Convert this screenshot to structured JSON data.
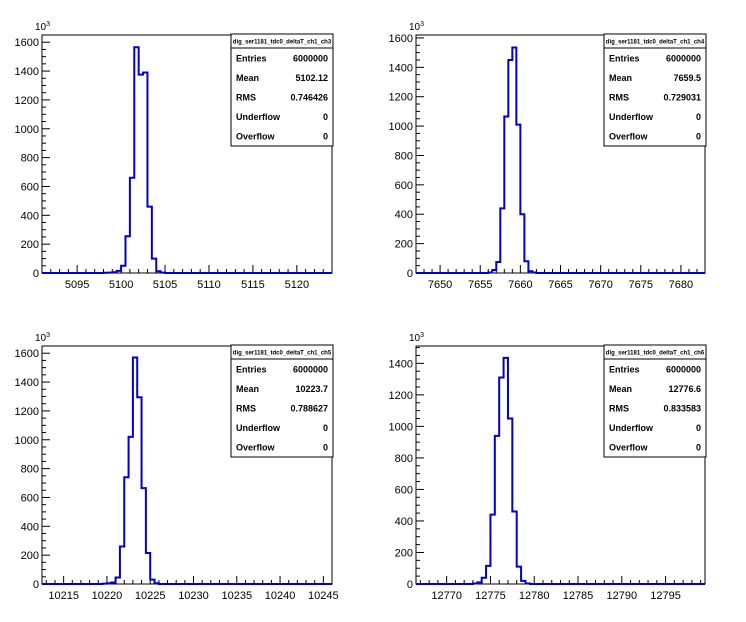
{
  "chart_data": [
    {
      "type": "histogram",
      "title": "dig_ser1181_tdc0_deltaT_ch1_ch3",
      "xlim": [
        5091,
        5124
      ],
      "ylim": [
        0,
        1650
      ],
      "xticks": [
        5095,
        5100,
        5105,
        5110,
        5115,
        5120
      ],
      "yticks": [
        0,
        200,
        400,
        600,
        800,
        1000,
        1200,
        1400,
        1600
      ],
      "yticks_major": [
        0,
        200,
        400,
        600,
        800,
        1000,
        1200,
        1400,
        1600
      ],
      "y_exponent_base": "10",
      "y_exponent_power": "3",
      "bin_width": 0.5,
      "bins": [
        [
          5098,
          2
        ],
        [
          5098.5,
          3
        ],
        [
          5099,
          5
        ],
        [
          5099.5,
          15
        ],
        [
          5100,
          50
        ],
        [
          5100.5,
          255
        ],
        [
          5101,
          660
        ],
        [
          5101.5,
          1565
        ],
        [
          5102,
          1375
        ],
        [
          5102.5,
          1390
        ],
        [
          5103,
          460
        ],
        [
          5103.5,
          100
        ],
        [
          5104,
          12
        ],
        [
          5104.5,
          3
        ]
      ],
      "stats": [
        {
          "label": "Entries",
          "value": "6000000"
        },
        {
          "label": "Mean",
          "value": "5102.12"
        },
        {
          "label": "RMS",
          "value": "0.746426"
        },
        {
          "label": "Underflow",
          "value": "0"
        },
        {
          "label": "Overflow",
          "value": "0"
        }
      ]
    },
    {
      "type": "histogram",
      "title": "dig_ser1181_tdc0_deltaT_ch1_ch4",
      "xlim": [
        7647,
        7683
      ],
      "ylim": [
        0,
        1620
      ],
      "xticks": [
        7650,
        7655,
        7660,
        7665,
        7670,
        7675,
        7680
      ],
      "yticks": [
        0,
        200,
        400,
        600,
        800,
        1000,
        1200,
        1400,
        1600
      ],
      "y_exponent_base": "10",
      "y_exponent_power": "3",
      "bin_width": 0.5,
      "bins": [
        [
          7656,
          3
        ],
        [
          7656.5,
          20
        ],
        [
          7657,
          75
        ],
        [
          7657.5,
          440
        ],
        [
          7658,
          1065
        ],
        [
          7658.5,
          1450
        ],
        [
          7659,
          1535
        ],
        [
          7659.5,
          1010
        ],
        [
          7660,
          400
        ],
        [
          7660.5,
          80
        ],
        [
          7661,
          12
        ],
        [
          7661.5,
          3
        ]
      ],
      "stats": [
        {
          "label": "Entries",
          "value": "6000000"
        },
        {
          "label": "Mean",
          "value": "7659.5"
        },
        {
          "label": "RMS",
          "value": "0.729031"
        },
        {
          "label": "Underflow",
          "value": "0"
        },
        {
          "label": "Overflow",
          "value": "0"
        }
      ]
    },
    {
      "type": "histogram",
      "title": "dig_ser1181_tdc0_deltaT_ch1_ch5",
      "xlim": [
        10212.5,
        10246
      ],
      "ylim": [
        0,
        1650
      ],
      "xticks": [
        10215,
        10220,
        10225,
        10230,
        10235,
        10240,
        10245
      ],
      "yticks": [
        0,
        200,
        400,
        600,
        800,
        1000,
        1200,
        1400,
        1600
      ],
      "y_exponent_base": "10",
      "y_exponent_power": "3",
      "bin_width": 0.5,
      "bins": [
        [
          10219.5,
          3
        ],
        [
          10220,
          5
        ],
        [
          10220.5,
          10
        ],
        [
          10221,
          45
        ],
        [
          10221.5,
          260
        ],
        [
          10222,
          740
        ],
        [
          10222.5,
          1020
        ],
        [
          10223,
          1570
        ],
        [
          10223.5,
          1295
        ],
        [
          10224,
          665
        ],
        [
          10224.5,
          215
        ],
        [
          10225,
          30
        ],
        [
          10225.5,
          5
        ]
      ],
      "stats": [
        {
          "label": "Entries",
          "value": "6000000"
        },
        {
          "label": "Mean",
          "value": "10223.7"
        },
        {
          "label": "RMS",
          "value": "0.788627"
        },
        {
          "label": "Underflow",
          "value": "0"
        },
        {
          "label": "Overflow",
          "value": "0"
        }
      ]
    },
    {
      "type": "histogram",
      "title": "dig_ser1181_tdc0_deltaT_ch1_ch6",
      "xlim": [
        12766.5,
        12799.5
      ],
      "ylim": [
        0,
        1510
      ],
      "xticks": [
        12770,
        12775,
        12780,
        12785,
        12790,
        12795
      ],
      "yticks": [
        0,
        200,
        400,
        600,
        800,
        1000,
        1200,
        1400
      ],
      "y_exponent_base": "10",
      "y_exponent_power": "3",
      "bin_width": 0.5,
      "bins": [
        [
          12773,
          3
        ],
        [
          12773.5,
          10
        ],
        [
          12774,
          40
        ],
        [
          12774.5,
          115
        ],
        [
          12775,
          440
        ],
        [
          12775.5,
          940
        ],
        [
          12776,
          1310
        ],
        [
          12776.5,
          1435
        ],
        [
          12777,
          1050
        ],
        [
          12777.5,
          460
        ],
        [
          12778,
          110
        ],
        [
          12778.5,
          20
        ],
        [
          12779,
          3
        ]
      ],
      "stats": [
        {
          "label": "Entries",
          "value": "6000000"
        },
        {
          "label": "Mean",
          "value": "12776.6"
        },
        {
          "label": "RMS",
          "value": "0.833583"
        },
        {
          "label": "Underflow",
          "value": "0"
        },
        {
          "label": "Overflow",
          "value": "0"
        }
      ]
    }
  ]
}
